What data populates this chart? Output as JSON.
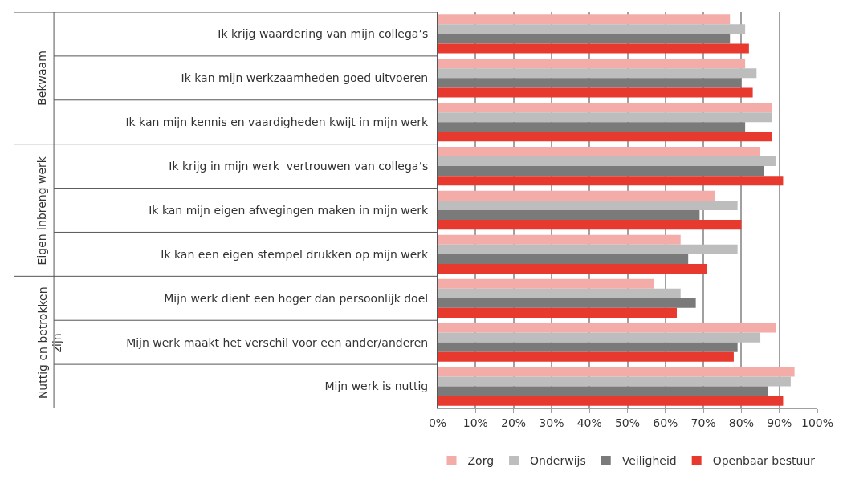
{
  "chart_data": {
    "type": "bar",
    "orientation": "horizontal",
    "categories": [
      "Ik krijg waardering van mijn collega’s",
      "Ik kan mijn werkzaamheden goed uitvoeren",
      "Ik kan mijn kennis en vaardigheden kwijt in mijn werk",
      "Ik krijg in mijn werk  vertrouwen van collega’s",
      "Ik kan mijn eigen afwegingen maken in mijn werk",
      "Ik kan een eigen stempel drukken op mijn werk",
      "Mijn werk dient een hoger dan persoonlijk doel",
      "Mijn werk maakt het verschil voor een ander/anderen",
      "Mijn werk is nuttig"
    ],
    "series": [
      {
        "name": "Zorg",
        "color": "#f4aca8",
        "values": [
          77,
          81,
          88,
          85,
          73,
          64,
          57,
          89,
          94
        ]
      },
      {
        "name": "Onderwijs",
        "color": "#bdbdbd",
        "values": [
          81,
          84,
          88,
          89,
          79,
          79,
          64,
          85,
          93
        ]
      },
      {
        "name": "Veiligheid",
        "color": "#7a7a7a",
        "values": [
          77,
          80,
          81,
          86,
          69,
          66,
          68,
          79,
          87
        ]
      },
      {
        "name": "Openbaar bestuur",
        "color": "#e8392f",
        "values": [
          82,
          83,
          88,
          91,
          80,
          71,
          63,
          78,
          91
        ]
      }
    ],
    "annotations": [
      "Bekwaam",
      "Eigen inbreng werk",
      "Nuttig en betrokken zijn"
    ],
    "xlim": [
      0,
      100
    ],
    "xticks": [
      {
        "value": 0,
        "label": "0%"
      },
      {
        "value": 10,
        "label": "10%"
      },
      {
        "value": 20,
        "label": "20%"
      },
      {
        "value": 30,
        "label": "30%"
      },
      {
        "value": 40,
        "label": "40%"
      },
      {
        "value": 50,
        "label": "50%"
      },
      {
        "value": 60,
        "label": "60%"
      },
      {
        "value": 70,
        "label": "70%"
      },
      {
        "value": 80,
        "label": "80%"
      },
      {
        "value": 90,
        "label": "90%"
      },
      {
        "value": 100,
        "label": "100%"
      }
    ],
    "grid": "x",
    "legend": "bottom"
  }
}
